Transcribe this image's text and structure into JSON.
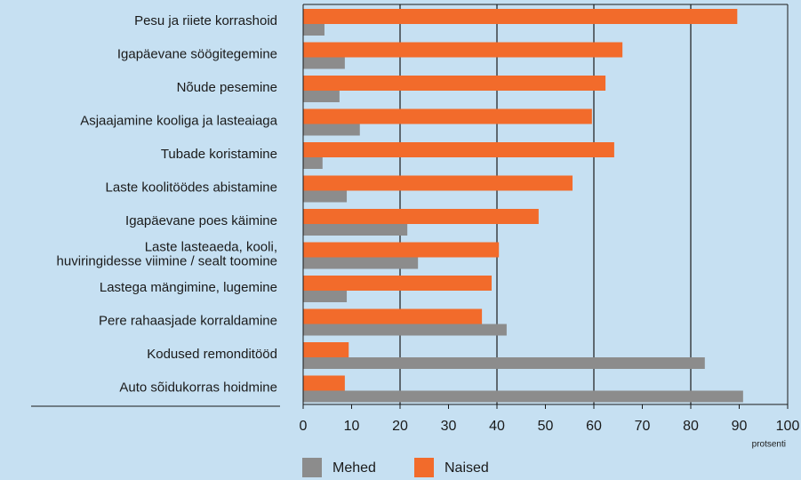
{
  "chart_data": {
    "type": "barh",
    "categories": [
      "Pesu ja riiete korrashoid",
      "Igapäevane söögitegemine",
      "Nõude pesemine",
      "Asjaajamine kooliga ja lasteaiaga",
      "Tubade koristamine",
      "Laste koolitöödes abistamine",
      "Igapäevane poes käimine",
      "Laste lasteaeda, kooli,\nhuviringidesse viimine / sealt toomine",
      "Lastega mängimine, lugemine",
      "Pere rahaasjade korraldamine",
      "Kodused remonditööd",
      "Auto sõidukorras hoidmine"
    ],
    "series": [
      {
        "name": "Naised",
        "color": "#f26b2b",
        "values": [
          89.6,
          65.9,
          62.4,
          59.6,
          64.2,
          55.6,
          48.6,
          40.4,
          38.9,
          36.9,
          9.4,
          8.6
        ]
      },
      {
        "name": "Mehed",
        "color": "#8c8c8c",
        "values": [
          4.4,
          8.6,
          7.5,
          11.7,
          4.0,
          9.0,
          21.5,
          23.7,
          9.0,
          42.0,
          82.9,
          90.8
        ]
      }
    ],
    "xlim": [
      0,
      100
    ],
    "xticks": [
      0,
      10,
      20,
      30,
      40,
      50,
      60,
      70,
      80,
      90,
      100
    ],
    "grid_ticks": [
      20,
      40,
      60,
      80
    ],
    "xlabel": "protsenti"
  }
}
